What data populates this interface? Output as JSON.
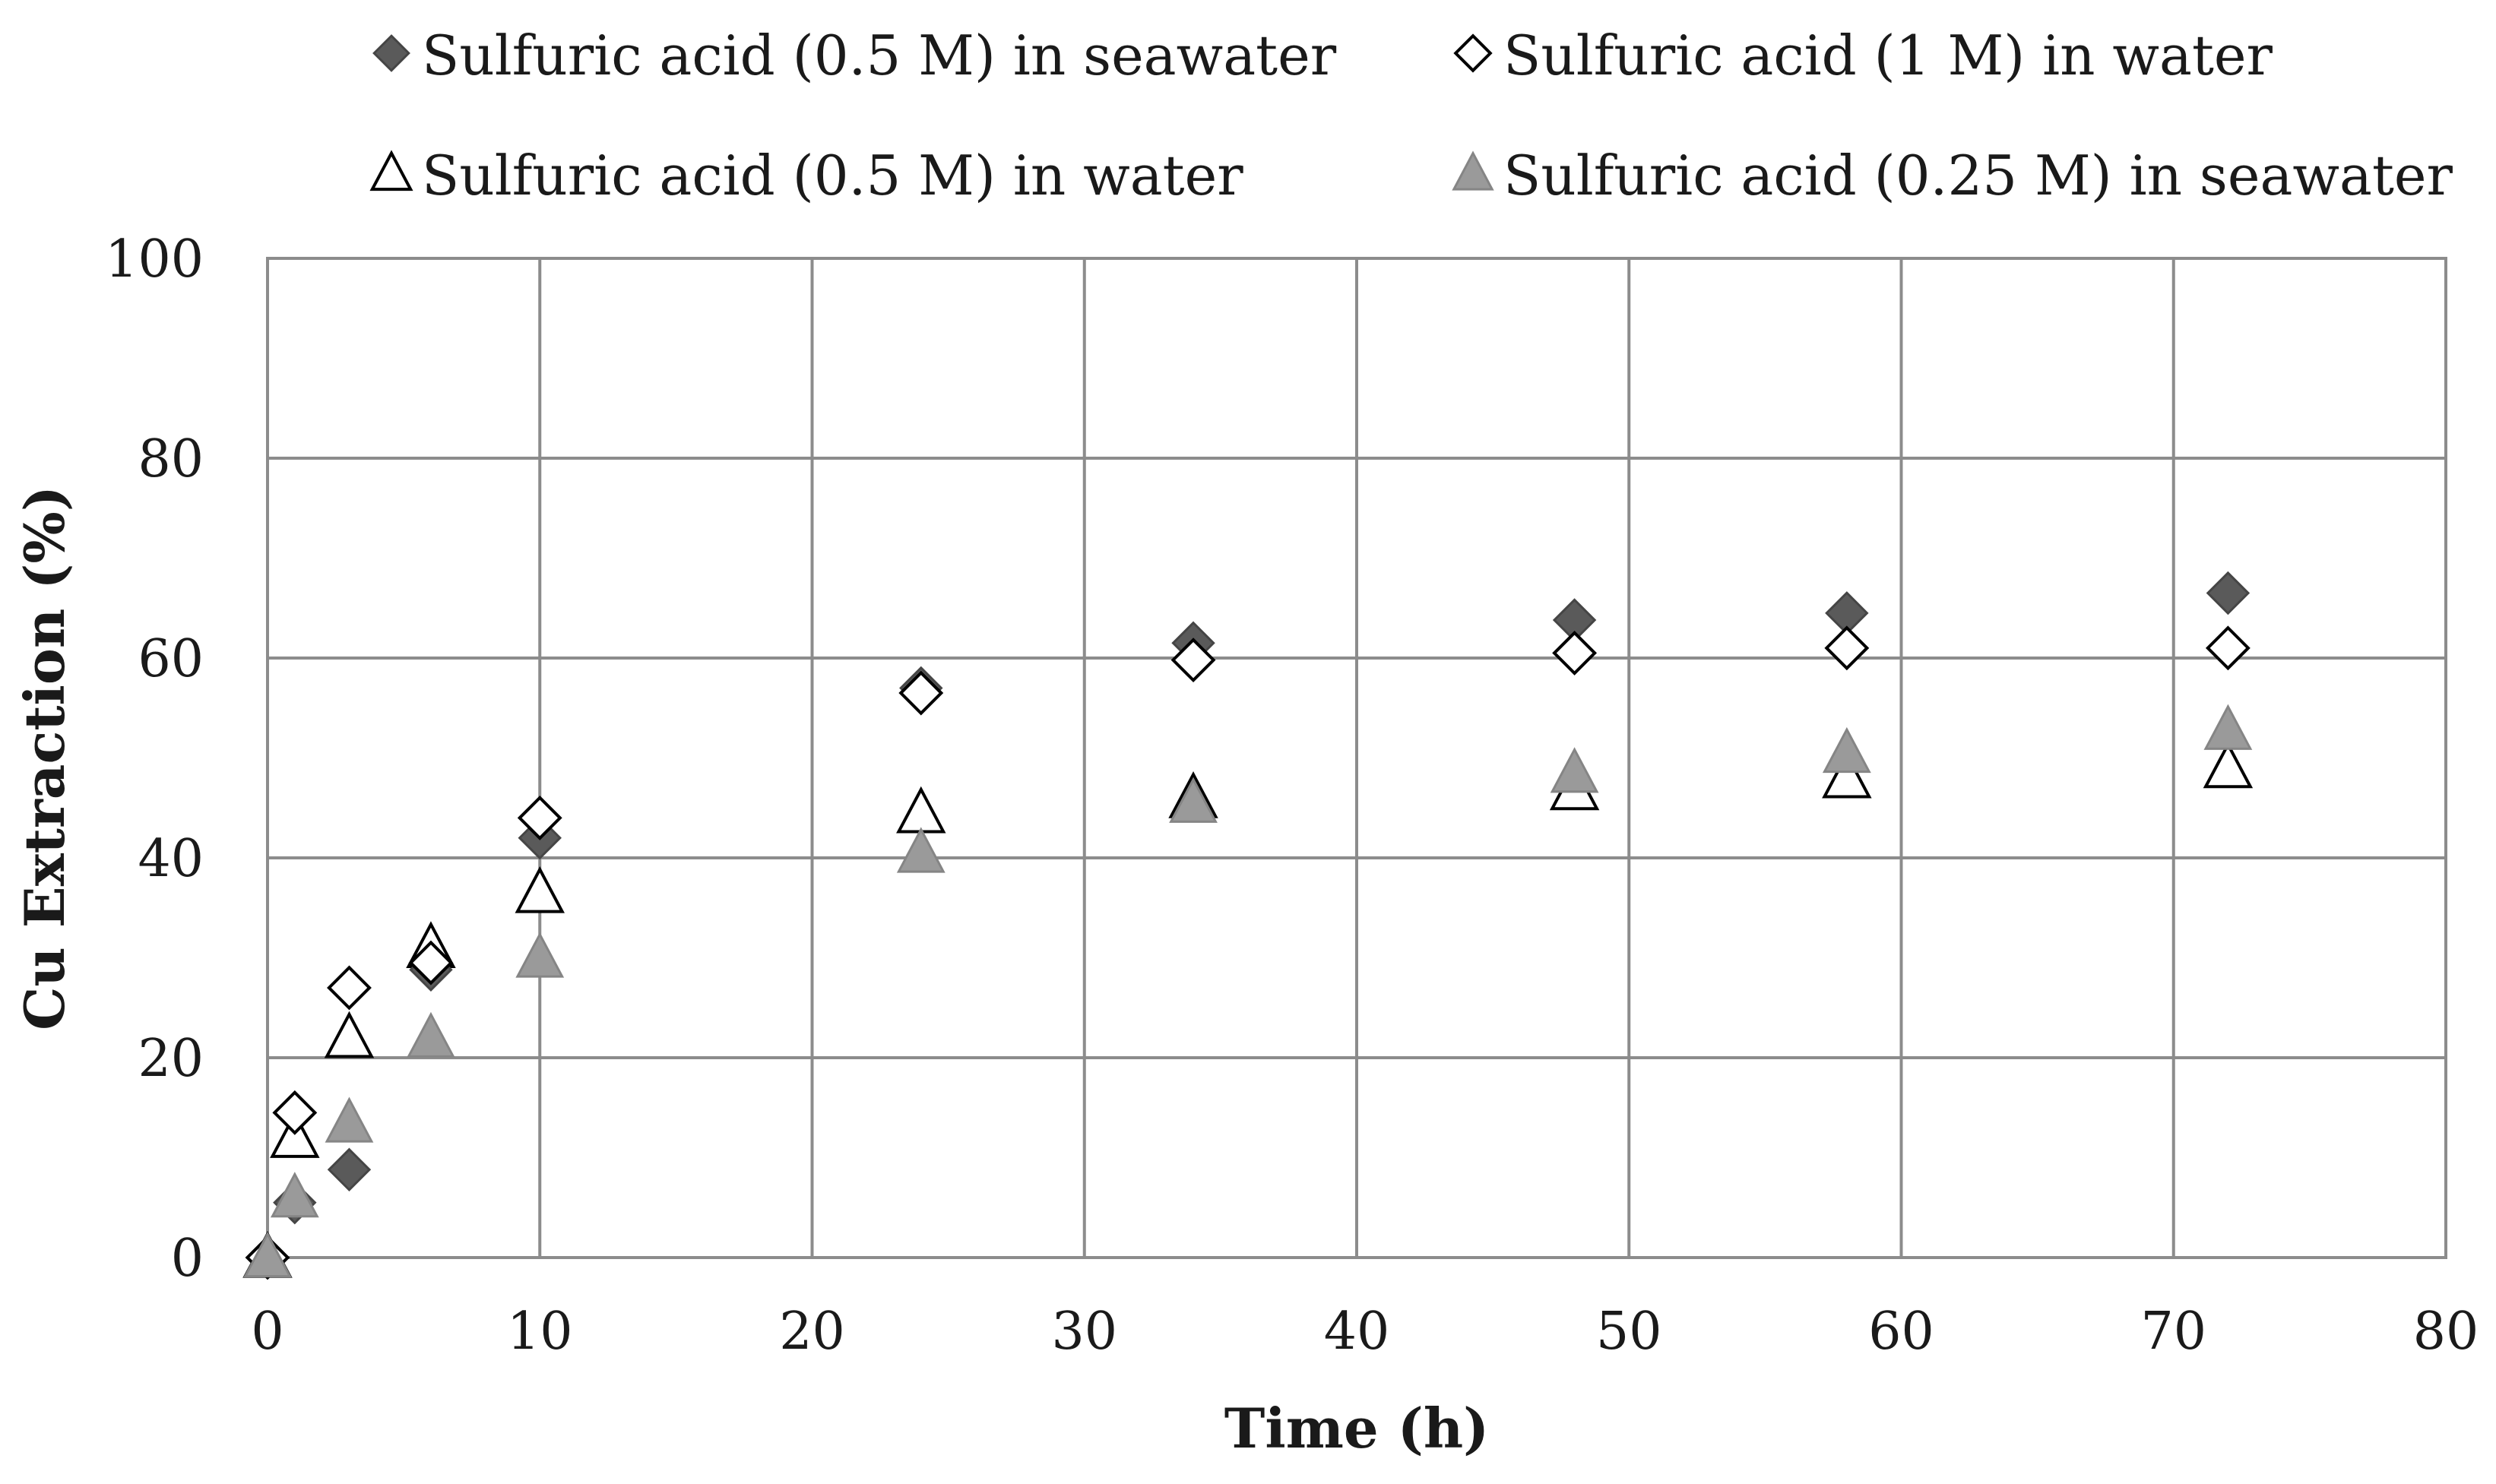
{
  "chart_data": {
    "type": "scatter",
    "xlabel": "Time (h)",
    "ylabel": "Cu Extraction (%)",
    "xlim": [
      0,
      80
    ],
    "ylim": [
      0,
      100
    ],
    "x_ticks": [
      0,
      10,
      20,
      30,
      40,
      50,
      60,
      70,
      80
    ],
    "y_ticks": [
      0,
      20,
      40,
      60,
      80,
      100
    ],
    "grid": true,
    "legend_position": "top",
    "series": [
      {
        "name": "Sulfuric acid (0.5 M) in seawater",
        "marker": "diamond-filled",
        "color": "#5a5a5a",
        "points": [
          [
            0,
            0
          ],
          [
            1,
            5.5
          ],
          [
            3,
            8.8
          ],
          [
            6,
            28.8
          ],
          [
            10,
            42
          ],
          [
            24,
            57
          ],
          [
            34,
            61.5
          ],
          [
            48,
            63.8
          ],
          [
            58,
            64.5
          ],
          [
            72,
            66.5
          ]
        ]
      },
      {
        "name": "Sulfuric acid (1 M) in water",
        "marker": "diamond-open",
        "color": "#000000",
        "points": [
          [
            0,
            0
          ],
          [
            1,
            14.5
          ],
          [
            3,
            27
          ],
          [
            6,
            29.5
          ],
          [
            10,
            44
          ],
          [
            24,
            56.5
          ],
          [
            34,
            59.8
          ],
          [
            48,
            60.5
          ],
          [
            58,
            61
          ],
          [
            72,
            61
          ]
        ]
      },
      {
        "name": "Sulfuric acid (0.5 M) in water",
        "marker": "triangle-open",
        "color": "#000000",
        "points": [
          [
            0,
            0
          ],
          [
            1,
            12
          ],
          [
            3,
            22
          ],
          [
            6,
            31
          ],
          [
            10,
            36.5
          ],
          [
            24,
            44.5
          ],
          [
            34,
            46
          ],
          [
            48,
            46.8
          ],
          [
            58,
            48
          ],
          [
            72,
            49
          ]
        ]
      },
      {
        "name": "Sulfuric acid (0.25 M) in seawater",
        "marker": "triangle-filled",
        "color": "#9a9a9a",
        "points": [
          [
            0,
            0
          ],
          [
            1,
            6
          ],
          [
            3,
            13.5
          ],
          [
            6,
            22
          ],
          [
            10,
            30
          ],
          [
            24,
            40.5
          ],
          [
            34,
            45.5
          ],
          [
            48,
            48.5
          ],
          [
            58,
            50.5
          ],
          [
            72,
            52.8
          ]
        ]
      }
    ]
  }
}
